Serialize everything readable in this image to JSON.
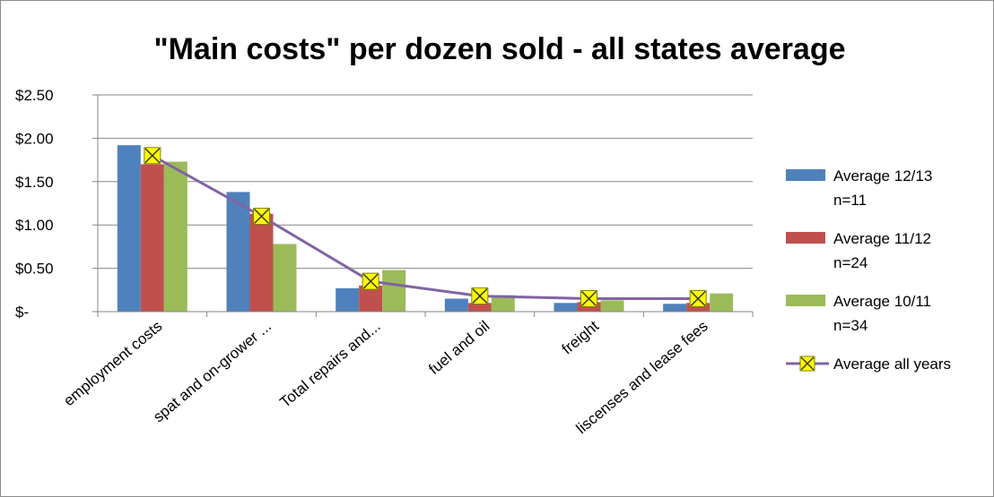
{
  "chart_data": {
    "type": "bar",
    "title": "\"Main costs\" per dozen sold - all states  average",
    "categories": [
      "employment costs",
      "spat and on-grower ...",
      "Total repairs and...",
      "fuel and oil",
      "freight",
      "liscenses and lease fees"
    ],
    "ylim": [
      0,
      2.5
    ],
    "yticks": [
      0,
      0.5,
      1.0,
      1.5,
      2.0,
      2.5
    ],
    "ytick_labels": [
      "$-",
      "$0.50",
      "$1.00",
      "$1.50",
      "$2.00",
      "$2.50"
    ],
    "grid": true,
    "legend_position": "right",
    "series": [
      {
        "name": "Average 12/13 n=11",
        "legend_lines": [
          "Average 12/13",
          "n=11"
        ],
        "type": "bar",
        "color": "#4f81bd",
        "values": [
          1.92,
          1.38,
          0.27,
          0.15,
          0.1,
          0.09
        ]
      },
      {
        "name": "Average 11/12 n=24",
        "legend_lines": [
          "Average 11/12",
          "n=24"
        ],
        "type": "bar",
        "color": "#c0504d",
        "values": [
          1.7,
          1.13,
          0.3,
          0.1,
          0.11,
          0.1
        ]
      },
      {
        "name": "Average 10/11 n=34",
        "legend_lines": [
          "Average 10/11",
          "n=34"
        ],
        "type": "bar",
        "color": "#9bbb59",
        "values": [
          1.73,
          0.78,
          0.48,
          0.19,
          0.13,
          0.21
        ]
      },
      {
        "name": "Average all years",
        "legend_lines": [
          "Average all years"
        ],
        "type": "line",
        "color": "#8064a2",
        "marker_color": "#ffff00",
        "values": [
          1.8,
          1.1,
          0.35,
          0.18,
          0.15,
          0.15
        ]
      }
    ]
  }
}
